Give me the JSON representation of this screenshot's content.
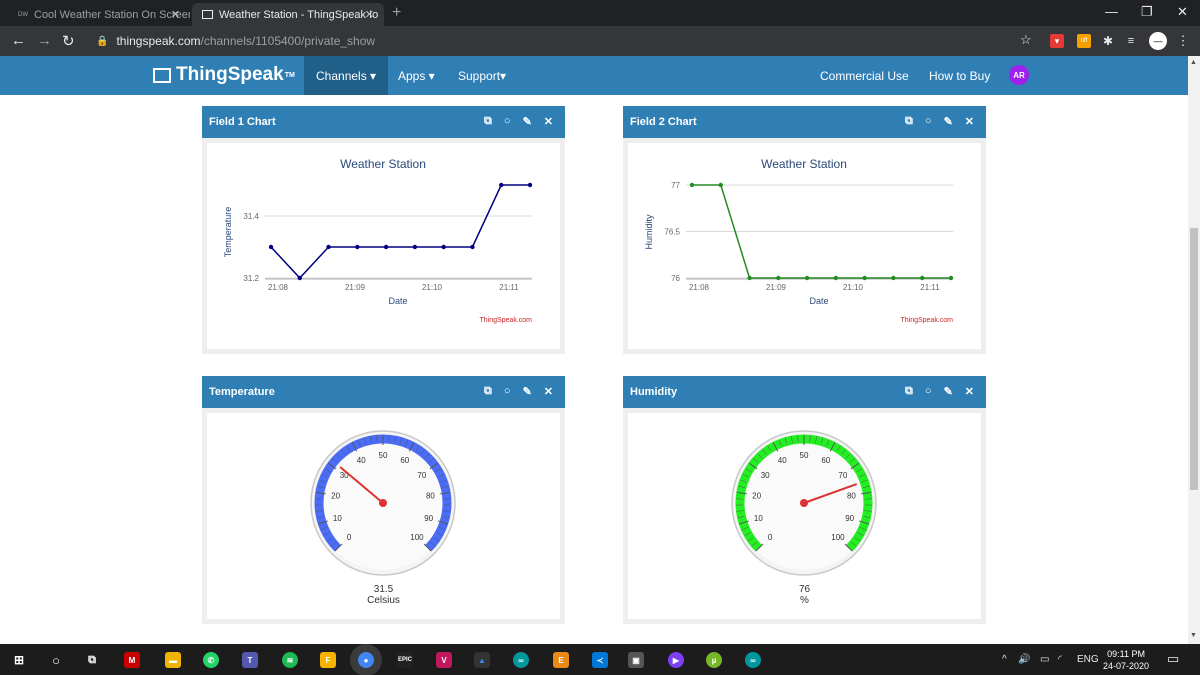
{
  "browser": {
    "tabs": [
      {
        "label": "Cool Weather Station On Screen",
        "favicon": "DW",
        "active": false
      },
      {
        "label": "Weather Station - ThingSpeak Io",
        "active": true
      }
    ],
    "url_domain": "thingspeak.com",
    "url_path": "/channels/1105400/private_show"
  },
  "nav": {
    "logo": "ThingSpeak",
    "logo_tm": "TM",
    "channels": "Channels ▾",
    "apps": "Apps ▾",
    "support": "Support▾",
    "commercial": "Commercial Use",
    "howtobuy": "How to Buy",
    "avatar": "AR"
  },
  "panels": {
    "field1": {
      "title": "Field 1 Chart"
    },
    "field2": {
      "title": "Field 2 Chart"
    },
    "temperature": {
      "title": "Temperature",
      "value": "31.5",
      "unit": "Celsius"
    },
    "humidity": {
      "title": "Humidity",
      "value": "76",
      "unit": "%"
    }
  },
  "chart_data": [
    {
      "type": "line",
      "title": "Weather Station",
      "xlabel": "Date",
      "ylabel": "Temperature",
      "credit": "ThingSpeak.com",
      "xticks": [
        "21:08",
        "21:09",
        "21:10",
        "21:11"
      ],
      "yticks": [
        "31.2",
        "31.4"
      ],
      "ylim": [
        31.2,
        31.5
      ],
      "color": "#000080",
      "x": [
        0,
        0.4,
        0.8,
        1.2,
        1.6,
        2.0,
        2.4,
        2.8,
        3.2,
        3.6
      ],
      "values": [
        31.3,
        31.2,
        31.3,
        31.3,
        31.3,
        31.3,
        31.3,
        31.3,
        31.5,
        31.5
      ]
    },
    {
      "type": "line",
      "title": "Weather Station",
      "xlabel": "Date",
      "ylabel": "Humidity",
      "credit": "ThingSpeak.com",
      "xticks": [
        "21:08",
        "21:09",
        "21:10",
        "21:11"
      ],
      "yticks": [
        "76",
        "76.5",
        "77"
      ],
      "ylim": [
        76,
        77
      ],
      "color": "#228b22",
      "x": [
        0,
        0.4,
        0.8,
        1.2,
        1.6,
        2.0,
        2.4,
        2.8,
        3.2,
        3.6
      ],
      "values": [
        77,
        77,
        76,
        76,
        76,
        76,
        76,
        76,
        76,
        76
      ]
    }
  ],
  "gauges": {
    "temperature": {
      "value": 31.5,
      "min": 0,
      "max": 100,
      "color": "#4a6cf7",
      "labels": [
        "0",
        "10",
        "20",
        "30",
        "40",
        "50",
        "60",
        "70",
        "80",
        "90",
        "100"
      ]
    },
    "humidity": {
      "value": 76,
      "min": 0,
      "max": 100,
      "color": "#22ee22",
      "labels": [
        "0",
        "10",
        "20",
        "30",
        "40",
        "50",
        "60",
        "70",
        "80",
        "90",
        "100"
      ]
    }
  },
  "taskbar": {
    "lang": "ENG",
    "time": "09:11 PM",
    "date": "24-07-2020"
  }
}
